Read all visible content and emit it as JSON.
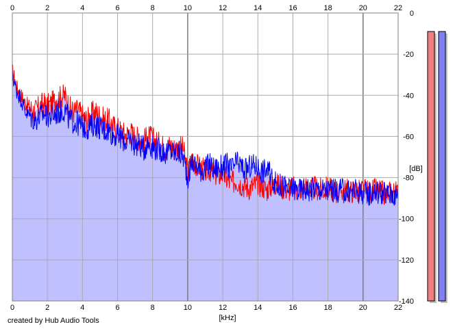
{
  "credit_text": "created by Hub Audio Tools",
  "colors": {
    "background": "#ffffff",
    "fill": "#c0c0ff",
    "grid": "#aaaaaa",
    "grid_major": "#808080",
    "channel_left": "#ff0000",
    "channel_right": "#0000ff",
    "meter_left": "#f08080",
    "meter_right": "#8080f0"
  },
  "chart_data": {
    "type": "line",
    "title": "",
    "xlabel": "[kHz]",
    "ylabel": "[dB]",
    "xlim": [
      0,
      22
    ],
    "ylim": [
      -140,
      0
    ],
    "x_ticks": [
      "0",
      "2",
      "4",
      "6",
      "8",
      "10",
      "12",
      "14",
      "16",
      "18",
      "20",
      "22"
    ],
    "y_ticks": [
      "0",
      "-20",
      "-40",
      "-60",
      "-80",
      "-100",
      "-120",
      "-140"
    ],
    "grid": true,
    "x": [
      0,
      0.25,
      0.5,
      0.75,
      1,
      1.25,
      1.5,
      1.75,
      2,
      2.25,
      2.5,
      2.75,
      3,
      3.25,
      3.5,
      3.75,
      4,
      4.25,
      4.5,
      4.75,
      5,
      5.25,
      5.5,
      5.75,
      6,
      6.25,
      6.5,
      6.75,
      7,
      7.25,
      7.5,
      7.75,
      8,
      8.25,
      8.5,
      8.75,
      9,
      9.25,
      9.5,
      9.75,
      10,
      10.25,
      10.5,
      10.75,
      11,
      11.25,
      11.5,
      11.75,
      12,
      12.25,
      12.5,
      12.75,
      13,
      13.25,
      13.5,
      13.75,
      14,
      14.25,
      14.5,
      14.75,
      15,
      15.25,
      15.5,
      15.75,
      16,
      16.25,
      16.5,
      16.75,
      17,
      17.25,
      17.5,
      17.75,
      18,
      18.25,
      18.5,
      18.75,
      19,
      19.25,
      19.5,
      19.75,
      20,
      20.25,
      20.5,
      20.75,
      21,
      21.25,
      21.5,
      21.75,
      22
    ],
    "series": [
      {
        "color": "#ff0000",
        "values": [
          -28,
          -36,
          -40,
          -44,
          -46,
          -48,
          -46,
          -44,
          -45,
          -44,
          -42,
          -41,
          -40,
          -46,
          -48,
          -47,
          -50,
          -52,
          -49,
          -48,
          -50,
          -52,
          -52,
          -55,
          -56,
          -58,
          -59,
          -58,
          -60,
          -61,
          -62,
          -60,
          -61,
          -63,
          -64,
          -66,
          -64,
          -66,
          -65,
          -66,
          -78,
          -71,
          -74,
          -75,
          -77,
          -76,
          -78,
          -79,
          -78,
          -81,
          -83,
          -81,
          -83,
          -84,
          -85,
          -84,
          -83,
          -84,
          -86,
          -84,
          -83,
          -84,
          -85,
          -86,
          -85,
          -86,
          -85,
          -85,
          -86,
          -85,
          -86,
          -86,
          -85,
          -86,
          -87,
          -86,
          -86,
          -87,
          -86,
          -87,
          -86,
          -87,
          -87,
          -86,
          -87,
          -88,
          -87,
          -87,
          -88
        ]
      },
      {
        "color": "#0000ff",
        "values": [
          -30,
          -38,
          -42,
          -48,
          -50,
          -52,
          -51,
          -49,
          -50,
          -50,
          -49,
          -48,
          -47,
          -52,
          -53,
          -54,
          -55,
          -56,
          -55,
          -54,
          -56,
          -57,
          -57,
          -59,
          -60,
          -61,
          -63,
          -62,
          -64,
          -64,
          -66,
          -63,
          -65,
          -66,
          -67,
          -68,
          -67,
          -68,
          -68,
          -70,
          -80,
          -72,
          -75,
          -76,
          -76,
          -73,
          -76,
          -75,
          -75,
          -74,
          -76,
          -73,
          -74,
          -77,
          -75,
          -74,
          -75,
          -77,
          -76,
          -79,
          -83,
          -84,
          -84,
          -86,
          -85,
          -86,
          -86,
          -85,
          -86,
          -85,
          -86,
          -86,
          -86,
          -86,
          -87,
          -86,
          -87,
          -87,
          -86,
          -87,
          -87,
          -88,
          -87,
          -87,
          -87,
          -88,
          -88,
          -88,
          -89
        ]
      }
    ],
    "level_meters": [
      {
        "color": "#f08080",
        "level_db": -9
      },
      {
        "color": "#8080f0",
        "level_db": -9
      }
    ]
  }
}
